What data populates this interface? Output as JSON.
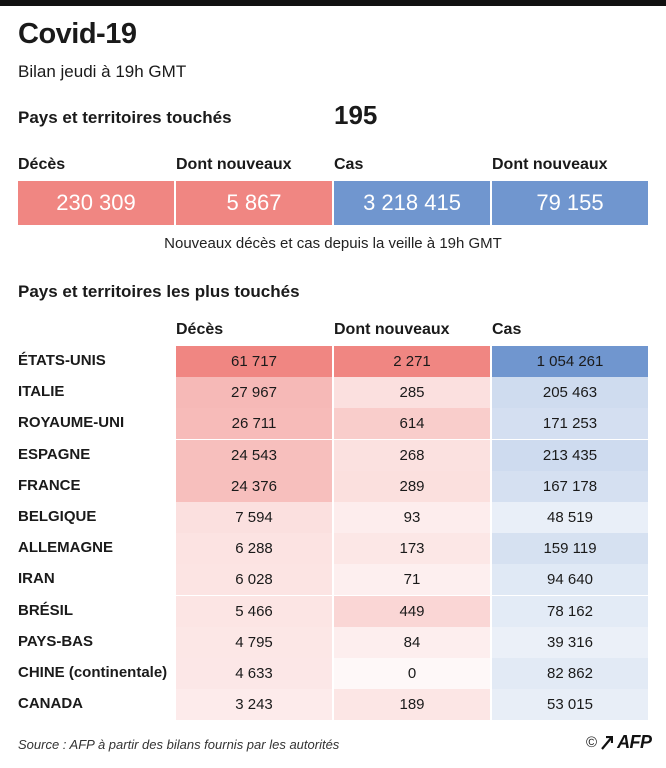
{
  "header": {
    "title": "Covid-19",
    "subtitle": "Bilan jeudi à 19h GMT"
  },
  "affected": {
    "label": "Pays et territoires touchés",
    "value": "195"
  },
  "summary": [
    {
      "label": "Décès",
      "value": "230 309",
      "color": "#f08682"
    },
    {
      "label": "Dont nouveaux",
      "value": "5 867",
      "color": "#f08682"
    },
    {
      "label": "Cas",
      "value": "3 218 415",
      "color": "#7096cf"
    },
    {
      "label": "Dont nouveaux",
      "value": "79 155",
      "color": "#7096cf"
    }
  ],
  "summary_note": "Nouveaux décès et cas depuis la veille à 19h GMT",
  "chart_data": {
    "type": "table",
    "title": "Pays et territoires les plus touchés",
    "columns": [
      "Décès",
      "Dont nouveaux",
      "Cas"
    ],
    "rows": [
      {
        "country": "ÉTATS-UNIS",
        "deces": 61717,
        "nouveaux": 2271,
        "cas": 1054261,
        "labels": [
          "61 717",
          "2 271",
          "1 054 261"
        ]
      },
      {
        "country": "ITALIE",
        "deces": 27967,
        "nouveaux": 285,
        "cas": 205463,
        "labels": [
          "27 967",
          "285",
          "205 463"
        ]
      },
      {
        "country": "ROYAUME-UNI",
        "deces": 26711,
        "nouveaux": 614,
        "cas": 171253,
        "labels": [
          "26 711",
          "614",
          "171 253"
        ]
      },
      {
        "country": "ESPAGNE",
        "deces": 24543,
        "nouveaux": 268,
        "cas": 213435,
        "labels": [
          "24 543",
          "268",
          "213 435"
        ]
      },
      {
        "country": "FRANCE",
        "deces": 24376,
        "nouveaux": 289,
        "cas": 167178,
        "labels": [
          "24 376",
          "289",
          "167 178"
        ]
      },
      {
        "country": "BELGIQUE",
        "deces": 7594,
        "nouveaux": 93,
        "cas": 48519,
        "labels": [
          "7 594",
          "93",
          "48 519"
        ]
      },
      {
        "country": "ALLEMAGNE",
        "deces": 6288,
        "nouveaux": 173,
        "cas": 159119,
        "labels": [
          "6 288",
          "173",
          "159 119"
        ]
      },
      {
        "country": "IRAN",
        "deces": 6028,
        "nouveaux": 71,
        "cas": 94640,
        "labels": [
          "6 028",
          "71",
          "94 640"
        ]
      },
      {
        "country": "BRÉSIL",
        "deces": 5466,
        "nouveaux": 449,
        "cas": 78162,
        "labels": [
          "5 466",
          "449",
          "78 162"
        ]
      },
      {
        "country": "PAYS-BAS",
        "deces": 4795,
        "nouveaux": 84,
        "cas": 39316,
        "labels": [
          "4 795",
          "84",
          "39 316"
        ]
      },
      {
        "country": "CHINE (continentale)",
        "deces": 4633,
        "nouveaux": 0,
        "cas": 82862,
        "labels": [
          "4 633",
          "0",
          "82 862"
        ]
      },
      {
        "country": "CANADA",
        "deces": 3243,
        "nouveaux": 189,
        "cas": 53015,
        "labels": [
          "3 243",
          "189",
          "53 015"
        ]
      }
    ],
    "colors": {
      "deces": "#f08682",
      "nouveaux": "#f08682",
      "cas": "#7096cf"
    }
  },
  "footer": {
    "source": "Source : AFP à partir des bilans fournis par les autorités",
    "copyright": "©",
    "logo": "AFP"
  }
}
